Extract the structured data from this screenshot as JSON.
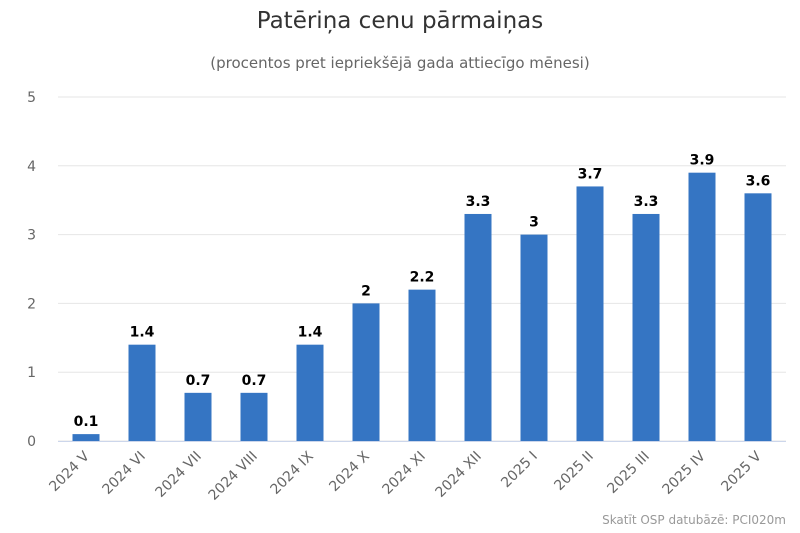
{
  "title": "Patēriņa cenu pārmaiņas",
  "subtitle": "(procentos pret iepriekšējā gada attiecīgo mēnesi)",
  "credit": "Skatīt OSP datubāzē: PCI020m",
  "colors": {
    "bar": "#3575c3",
    "grid": "#e6e6e6",
    "axis_text": "#666666",
    "label_text": "#000000"
  },
  "chart_data": {
    "type": "bar",
    "title": "Patēriņa cenu pārmaiņas",
    "subtitle": "(procentos pret iepriekšējā gada attiecīgo mēnesi)",
    "categories": [
      "2024 V",
      "2024 VI",
      "2024 VII",
      "2024 VIII",
      "2024 IX",
      "2024 X",
      "2024 XI",
      "2024 XII",
      "2025 I",
      "2025 II",
      "2025 III",
      "2025 IV",
      "2025 V"
    ],
    "values": [
      0.1,
      1.4,
      0.7,
      0.7,
      1.4,
      2,
      2.2,
      3.3,
      3,
      3.7,
      3.3,
      3.9,
      3.6
    ],
    "data_labels": [
      "0.1",
      "1.4",
      "0.7",
      "0.7",
      "1.4",
      "2",
      "2.2",
      "3.3",
      "3",
      "3.7",
      "3.3",
      "3.9",
      "3.6"
    ],
    "y_ticks": [
      "0",
      "1",
      "2",
      "3",
      "4",
      "5"
    ],
    "ylim": [
      0,
      5
    ],
    "grid": true,
    "legend": "none"
  }
}
